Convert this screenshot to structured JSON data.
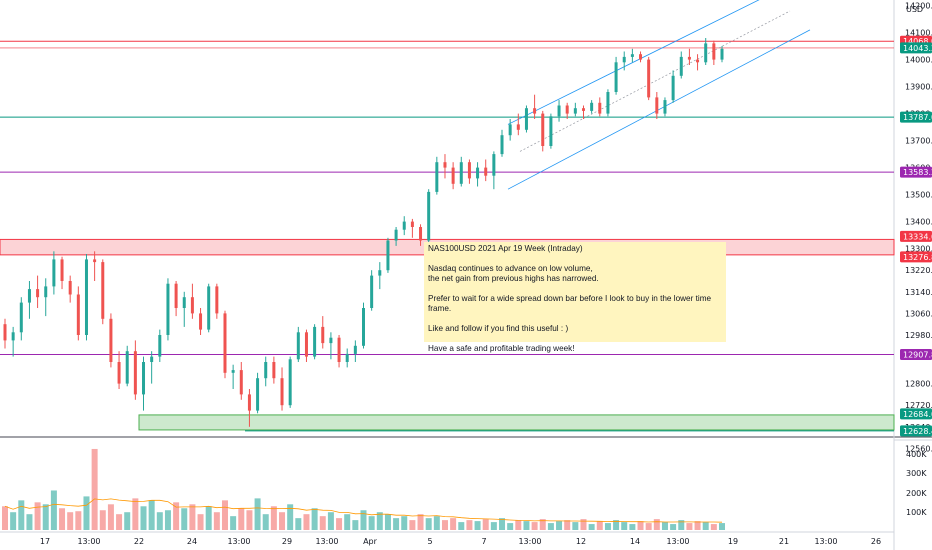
{
  "currency": "USD",
  "note": {
    "title": "NAS100USD 2021 Apr 19 Week (Intraday)",
    "paragraphs": [
      "Nasdaq continues to advance on low volume,\nthe net gain from previous highs has narrowed.",
      "Prefer to wait for a wide spread down bar before I look to buy in the lower time frame.",
      "Like and follow if you find this useful : )",
      "Have a safe and profitable trading week!"
    ]
  },
  "colors": {
    "up": "#26a69a",
    "down": "#ef5350",
    "vol_up": "#80cbc4",
    "vol_down": "#f7a9a7",
    "red_line": "#f23645",
    "teal_line": "#089981",
    "purple_line": "#9c27b0",
    "green_line": "#089981",
    "channel": "#2196f3",
    "ma": "#ff9800"
  },
  "chart_data": {
    "type": "candlestick",
    "y_axis": {
      "range": [
        12500,
        14250
      ],
      "ticks": [
        "14200.0",
        "14100.0",
        "14000.0",
        "13900.0",
        "13800.0",
        "13700.0",
        "13600.0",
        "13500.0",
        "13400.0",
        "13300.0",
        "13220.0",
        "13140.0",
        "13060.0",
        "12980.0",
        "12900.0",
        "12800.0",
        "12720.0",
        "12640.0",
        "12560.0"
      ]
    },
    "x_axis": {
      "ticks": [
        "17",
        "13:00",
        "22",
        "24",
        "13:00",
        "29",
        "13:00",
        "Apr",
        "5",
        "7",
        "13:00",
        "12",
        "14",
        "13:00",
        "19",
        "21",
        "13:00",
        "26"
      ]
    },
    "price_levels": [
      {
        "label": "14068.0",
        "value": 14068,
        "color": "#f23645"
      },
      {
        "label": "14043.2",
        "value": 14043.2,
        "color": "#089981"
      },
      {
        "label": "13787.0",
        "value": 13787,
        "color": "#089981"
      },
      {
        "label": "13583.2",
        "value": 13583.2,
        "color": "#9c27b0"
      },
      {
        "label": "13334.0",
        "value": 13334,
        "color": "#f23645"
      },
      {
        "label": "13276.8",
        "value": 13276.8,
        "color": "#f23645"
      },
      {
        "label": "12907.8",
        "value": 12907.8,
        "color": "#9c27b0"
      },
      {
        "label": "12684.0",
        "value": 12684,
        "color": "#089981"
      },
      {
        "label": "12628.4",
        "value": 12628.4,
        "color": "#089981"
      }
    ],
    "zones": [
      {
        "name": "resistance",
        "from": 13276.8,
        "to": 13334
      },
      {
        "name": "support",
        "from": 12628.4,
        "to": 12684
      }
    ],
    "volume_axis": {
      "ticks": [
        "400K",
        "300K",
        "200K",
        "100K"
      ],
      "max": 430000
    },
    "candles": [
      [
        13020,
        13040,
        12930,
        12960
      ],
      [
        12960,
        13010,
        12900,
        12990
      ],
      [
        12990,
        13120,
        12960,
        13100
      ],
      [
        13100,
        13180,
        13040,
        13150
      ],
      [
        13150,
        13200,
        13080,
        13120
      ],
      [
        13120,
        13190,
        13050,
        13160
      ],
      [
        13160,
        13290,
        13130,
        13260
      ],
      [
        13260,
        13270,
        13150,
        13180
      ],
      [
        13180,
        13200,
        13100,
        13130
      ],
      [
        13130,
        13160,
        12960,
        12980
      ],
      [
        12980,
        13280,
        12960,
        13260
      ],
      [
        13260,
        13290,
        13180,
        13250
      ],
      [
        13250,
        13260,
        13020,
        13040
      ],
      [
        13040,
        13060,
        12860,
        12880
      ],
      [
        12880,
        12920,
        12780,
        12800
      ],
      [
        12800,
        12940,
        12790,
        12920
      ],
      [
        12920,
        12960,
        12740,
        12760
      ],
      [
        12760,
        12900,
        12700,
        12880
      ],
      [
        12880,
        12920,
        12800,
        12900
      ],
      [
        12900,
        13000,
        12880,
        12980
      ],
      [
        12980,
        13190,
        12960,
        13170
      ],
      [
        13170,
        13180,
        13050,
        13080
      ],
      [
        13080,
        13140,
        13010,
        13120
      ],
      [
        13120,
        13170,
        13040,
        13060
      ],
      [
        13060,
        13080,
        12980,
        13000
      ],
      [
        13000,
        13170,
        12990,
        13160
      ],
      [
        13160,
        13170,
        13040,
        13060
      ],
      [
        13060,
        13070,
        12820,
        12840
      ],
      [
        12840,
        12870,
        12780,
        12850
      ],
      [
        12850,
        12880,
        12740,
        12760
      ],
      [
        12760,
        12780,
        12640,
        12700
      ],
      [
        12700,
        12840,
        12690,
        12820
      ],
      [
        12820,
        12900,
        12790,
        12880
      ],
      [
        12880,
        12900,
        12800,
        12820
      ],
      [
        12820,
        12860,
        12700,
        12720
      ],
      [
        12720,
        12900,
        12710,
        12890
      ],
      [
        12890,
        13010,
        12880,
        12990
      ],
      [
        12990,
        13000,
        12880,
        12900
      ],
      [
        12900,
        13020,
        12890,
        13010
      ],
      [
        13010,
        13050,
        12930,
        12950
      ],
      [
        12950,
        12990,
        12890,
        12970
      ],
      [
        12970,
        12980,
        12860,
        12880
      ],
      [
        12880,
        12930,
        12860,
        12910
      ],
      [
        12910,
        12960,
        12880,
        12940
      ],
      [
        12940,
        13100,
        12930,
        13080
      ],
      [
        13080,
        13220,
        13070,
        13200
      ],
      [
        13200,
        13250,
        13150,
        13220
      ],
      [
        13220,
        13340,
        13210,
        13330
      ],
      [
        13330,
        13380,
        13310,
        13370
      ],
      [
        13370,
        13420,
        13350,
        13400
      ],
      [
        13400,
        13410,
        13340,
        13380
      ],
      [
        13380,
        13390,
        13310,
        13330
      ],
      [
        13330,
        13520,
        13320,
        13510
      ],
      [
        13510,
        13640,
        13500,
        13620
      ],
      [
        13620,
        13650,
        13560,
        13600
      ],
      [
        13600,
        13620,
        13520,
        13540
      ],
      [
        13540,
        13640,
        13530,
        13620
      ],
      [
        13620,
        13630,
        13540,
        13560
      ],
      [
        13560,
        13620,
        13530,
        13600
      ],
      [
        13600,
        13630,
        13550,
        13570
      ],
      [
        13570,
        13660,
        13520,
        13650
      ],
      [
        13650,
        13740,
        13640,
        13720
      ],
      [
        13720,
        13780,
        13700,
        13760
      ],
      [
        13760,
        13800,
        13720,
        13740
      ],
      [
        13740,
        13830,
        13730,
        13820
      ],
      [
        13820,
        13870,
        13780,
        13800
      ],
      [
        13800,
        13810,
        13660,
        13680
      ],
      [
        13680,
        13800,
        13670,
        13790
      ],
      [
        13790,
        13850,
        13770,
        13830
      ],
      [
        13830,
        13840,
        13780,
        13800
      ],
      [
        13800,
        13840,
        13790,
        13820
      ],
      [
        13820,
        13830,
        13780,
        13810
      ],
      [
        13810,
        13850,
        13800,
        13840
      ],
      [
        13840,
        13860,
        13790,
        13800
      ],
      [
        13800,
        13890,
        13790,
        13880
      ],
      [
        13880,
        14010,
        13870,
        13990
      ],
      [
        13990,
        14030,
        13960,
        14010
      ],
      [
        14010,
        14040,
        13990,
        14020
      ],
      [
        14020,
        14030,
        13990,
        14000
      ],
      [
        14000,
        14010,
        13850,
        13860
      ],
      [
        13860,
        13880,
        13780,
        13800
      ],
      [
        13800,
        13860,
        13790,
        13850
      ],
      [
        13850,
        13960,
        13840,
        13940
      ],
      [
        13940,
        14030,
        13930,
        14010
      ],
      [
        14010,
        14040,
        13980,
        14000
      ],
      [
        14000,
        14020,
        13960,
        13990
      ],
      [
        13990,
        14080,
        13980,
        14060
      ],
      [
        14060,
        14070,
        13980,
        14000
      ],
      [
        14000,
        14050,
        13990,
        14040
      ]
    ],
    "volumes": [
      120000,
      90000,
      150000,
      80000,
      140000,
      130000,
      200000,
      110000,
      90000,
      95000,
      170000,
      410000,
      100000,
      130000,
      80000,
      90000,
      160000,
      120000,
      150000,
      90000,
      100000,
      140000,
      110000,
      130000,
      80000,
      120000,
      90000,
      150000,
      70000,
      110000,
      100000,
      160000,
      80000,
      120000,
      90000,
      130000,
      60000,
      80000,
      110000,
      70000,
      90000,
      60000,
      80000,
      50000,
      100000,
      70000,
      90000,
      80000,
      60000,
      70000,
      50000,
      80000,
      60000,
      70000,
      50000,
      60000,
      40000,
      50000,
      45000,
      55000,
      40000,
      60000,
      35000,
      50000,
      45000,
      40000,
      55000,
      35000,
      45000,
      50000,
      40000,
      55000,
      30000,
      45000,
      35000,
      50000,
      40000,
      30000,
      45000,
      35000,
      55000,
      40000,
      30000,
      50000,
      35000,
      45000,
      40000,
      30000,
      35000
    ]
  }
}
